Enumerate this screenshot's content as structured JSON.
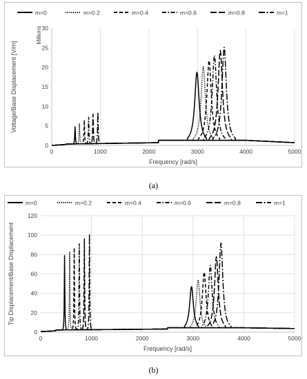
{
  "chart_data": [
    {
      "type": "line",
      "caption": "(a)",
      "ylabel": "Voltage/Base Displacement [V/m]",
      "y_unit_label": "Millions",
      "xlabel": "Frequency [rad/s]",
      "xlim": [
        0,
        5000
      ],
      "ylim": [
        0,
        30
      ],
      "x_ticks": [
        "0",
        "1000",
        "2000",
        "3000",
        "4000",
        "5000"
      ],
      "y_ticks": [
        "0",
        "5",
        "10",
        "15",
        "20",
        "25",
        "30"
      ],
      "grid": "vertical",
      "legend_position": "top",
      "legend": [
        "m=0",
        "m=0.2",
        "m=0.4",
        "m=0.6",
        "m=0.8",
        "m=1"
      ],
      "series": [
        {
          "name": "m=0",
          "dash": "solid",
          "peak1": {
            "x": 480,
            "y": 4.6
          },
          "peak2": {
            "x": 2990,
            "y": 18.2
          }
        },
        {
          "name": "m=0.2",
          "dash": "dotted",
          "peak1": {
            "x": 570,
            "y": 5.3
          },
          "peak2": {
            "x": 3120,
            "y": 19.6
          }
        },
        {
          "name": "m=0.4",
          "dash": "dashed",
          "peak1": {
            "x": 670,
            "y": 6.3
          },
          "peak2": {
            "x": 3240,
            "y": 21.2
          }
        },
        {
          "name": "m=0.6",
          "dash": "dash-dot",
          "peak1": {
            "x": 760,
            "y": 7.0
          },
          "peak2": {
            "x": 3350,
            "y": 22.5
          }
        },
        {
          "name": "m=0.8",
          "dash": "long-dash",
          "peak1": {
            "x": 850,
            "y": 7.8
          },
          "peak2": {
            "x": 3470,
            "y": 23.8
          }
        },
        {
          "name": "m=1",
          "dash": "long-dash-dot",
          "peak1": {
            "x": 950,
            "y": 8.3
          },
          "peak2": {
            "x": 3550,
            "y": 24.6
          }
        }
      ]
    },
    {
      "type": "line",
      "caption": "(b)",
      "ylabel": "Tip Displacement/Base Displacement",
      "xlabel": "Frequency [rad/s]",
      "xlim": [
        0,
        5000
      ],
      "ylim": [
        0,
        120
      ],
      "x_ticks": [
        "0",
        "1000",
        "2000",
        "3000",
        "4000",
        "5000"
      ],
      "y_ticks": [
        "0",
        "20",
        "40",
        "60",
        "80",
        "100",
        "120"
      ],
      "grid": "both",
      "legend_position": "top",
      "legend": [
        "m=0",
        "m=0.2",
        "m=0.4",
        "m=0.6",
        "m=0.8",
        "m=1"
      ],
      "series": [
        {
          "name": "m=0",
          "dash": "solid",
          "peak1": {
            "x": 470,
            "y": 78
          },
          "peak2": {
            "x": 2970,
            "y": 45
          }
        },
        {
          "name": "m=0.2",
          "dash": "dotted",
          "peak1": {
            "x": 570,
            "y": 82
          },
          "peak2": {
            "x": 3100,
            "y": 52
          }
        },
        {
          "name": "m=0.4",
          "dash": "dashed",
          "peak1": {
            "x": 660,
            "y": 86
          },
          "peak2": {
            "x": 3220,
            "y": 60
          }
        },
        {
          "name": "m=0.6",
          "dash": "dash-dot",
          "peak1": {
            "x": 760,
            "y": 90
          },
          "peak2": {
            "x": 3340,
            "y": 67
          }
        },
        {
          "name": "m=0.8",
          "dash": "long-dash",
          "peak1": {
            "x": 860,
            "y": 95
          },
          "peak2": {
            "x": 3460,
            "y": 76
          }
        },
        {
          "name": "m=1",
          "dash": "long-dash-dot",
          "peak1": {
            "x": 960,
            "y": 100
          },
          "peak2": {
            "x": 3550,
            "y": 90
          }
        }
      ]
    }
  ]
}
